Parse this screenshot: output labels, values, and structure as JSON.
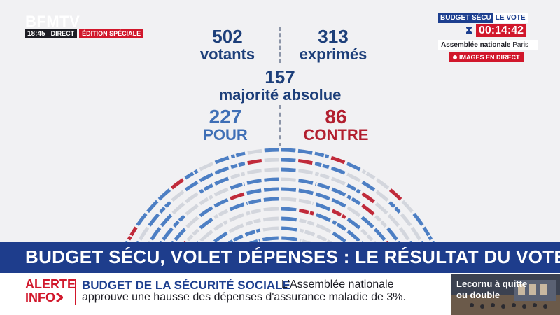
{
  "channel": {
    "logo": "BFMTV",
    "time": "18:45",
    "direct": "DIRECT",
    "edition": "ÉDITION SPÉCIALE"
  },
  "vote_panel": {
    "title_a": "BUDGET SÉCU",
    "title_b": "LE VOTE",
    "timer": "00:14:42",
    "location_bold": "Assemblée nationale",
    "location_city": "Paris",
    "live_label": "IMAGES EN DIRECT"
  },
  "results": {
    "votants_value": "502",
    "votants_label": "votants",
    "exprimes_value": "313",
    "exprimes_label": "exprimés",
    "majorite_value": "157",
    "majorite_label": "majorité absolue",
    "pour_value": "227",
    "pour_label": "POUR",
    "contre_value": "86",
    "contre_label": "CONTRE"
  },
  "hemicycle": {
    "pour": 227,
    "contre": 86,
    "abstention_or_absent": 264,
    "colors": {
      "pour": "#4d7fc4",
      "contre": "#c02a3a",
      "other": "#d3d6dd"
    }
  },
  "headline": {
    "text": "BUDGET SÉCU, VOLET DÉPENSES : LE RÉSULTAT DU VOTE"
  },
  "ticker": {
    "alert_line1": "ALERTE",
    "alert_line2": "INFO",
    "title": "BUDGET DE LA SÉCURITÉ SOCIALE",
    "body_part1": "L'Assemblée nationale",
    "body_part2": "approuve une hausse des dépenses d'assurance maladie de 3%."
  },
  "promo": {
    "line1": "Lecornu à quitte",
    "line2": "ou double"
  },
  "colors": {
    "brand_blue": "#1e3d8c",
    "brand_red": "#d1172b",
    "figure_blue": "#1d3f7a",
    "pour_blue": "#3f6fb6",
    "contre_red": "#b21f2f"
  }
}
